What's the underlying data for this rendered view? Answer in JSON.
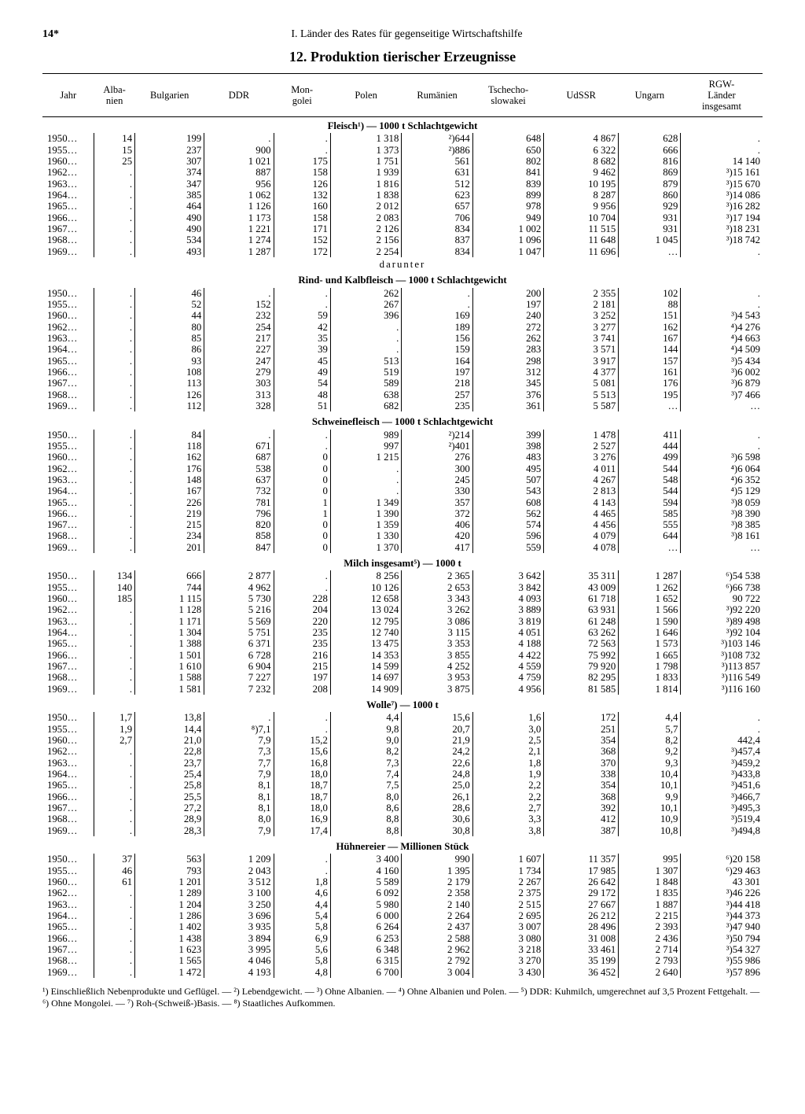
{
  "page_number": "14*",
  "running_head": "I. Länder des Rates für gegenseitige Wirtschaftshilfe",
  "title": "12. Produktion tierischer Erzeugnisse",
  "columns": [
    "Jahr",
    "Alba-\nnien",
    "Bulgarien",
    "DDR",
    "Mon-\ngolei",
    "Polen",
    "Rumänien",
    "Tschecho-\nslowakei",
    "UdSSR",
    "Ungarn",
    "RGW-\nLänder\ninsgesamt"
  ],
  "years": [
    "1950…",
    "1955…",
    "1960…",
    "1962…",
    "1963…",
    "1964…",
    "1965…",
    "1966…",
    "1967…",
    "1968…",
    "1969…"
  ],
  "darunter_label": "darunter",
  "sections": [
    {
      "title": "Fleisch¹) — 1000 t Schlachtgewicht",
      "rows": [
        [
          "14",
          "199",
          ".",
          ".",
          "1 318",
          "²)644",
          "648",
          "4 867",
          "628",
          "."
        ],
        [
          "15",
          "237",
          "900",
          ".",
          "1 373",
          "²)886",
          "650",
          "6 322",
          "666",
          "."
        ],
        [
          "25",
          "307",
          "1 021",
          "175",
          "1 751",
          "561",
          "802",
          "8 682",
          "816",
          "14 140"
        ],
        [
          ".",
          "374",
          "887",
          "158",
          "1 939",
          "631",
          "841",
          "9 462",
          "869",
          "³)15 161"
        ],
        [
          ".",
          "347",
          "956",
          "126",
          "1 816",
          "512",
          "839",
          "10 195",
          "879",
          "³)15 670"
        ],
        [
          ".",
          "385",
          "1 062",
          "132",
          "1 838",
          "623",
          "899",
          "8 287",
          "860",
          "³)14 086"
        ],
        [
          ".",
          "464",
          "1 126",
          "160",
          "2 012",
          "657",
          "978",
          "9 956",
          "929",
          "³)16 282"
        ],
        [
          ".",
          "490",
          "1 173",
          "158",
          "2 083",
          "706",
          "949",
          "10 704",
          "931",
          "³)17 194"
        ],
        [
          ".",
          "490",
          "1 221",
          "171",
          "2 126",
          "834",
          "1 002",
          "11 515",
          "931",
          "³)18 231"
        ],
        [
          ".",
          "534",
          "1 274",
          "152",
          "2 156",
          "837",
          "1 096",
          "11 648",
          "1 045",
          "³)18 742"
        ],
        [
          ".",
          "493",
          "1 287",
          "172",
          "2 254",
          "834",
          "1 047",
          "11 696",
          "…",
          "."
        ]
      ]
    },
    {
      "title": "Rind- und Kalbfleisch — 1000 t Schlachtgewicht",
      "rows": [
        [
          ".",
          "46",
          ".",
          ".",
          "262",
          ".",
          "200",
          "2 355",
          "102",
          "."
        ],
        [
          ".",
          "52",
          "152",
          ".",
          "267",
          ".",
          "197",
          "2 181",
          "88",
          "."
        ],
        [
          ".",
          "44",
          "232",
          "59",
          "396",
          "169",
          "240",
          "3 252",
          "151",
          "³)4 543"
        ],
        [
          ".",
          "80",
          "254",
          "42",
          ".",
          "189",
          "272",
          "3 277",
          "162",
          "⁴)4 276"
        ],
        [
          ".",
          "85",
          "217",
          "35",
          ".",
          "156",
          "262",
          "3 741",
          "167",
          "⁴)4 663"
        ],
        [
          ".",
          "86",
          "227",
          "39",
          ".",
          "159",
          "283",
          "3 571",
          "144",
          "⁴)4 509"
        ],
        [
          ".",
          "93",
          "247",
          "45",
          "513",
          "164",
          "298",
          "3 917",
          "157",
          "³)5 434"
        ],
        [
          ".",
          "108",
          "279",
          "49",
          "519",
          "197",
          "312",
          "4 377",
          "161",
          "³)6 002"
        ],
        [
          ".",
          "113",
          "303",
          "54",
          "589",
          "218",
          "345",
          "5 081",
          "176",
          "³)6 879"
        ],
        [
          ".",
          "126",
          "313",
          "48",
          "638",
          "257",
          "376",
          "5 513",
          "195",
          "³)7 466"
        ],
        [
          ".",
          "112",
          "328",
          "51",
          "682",
          "235",
          "361",
          "5 587",
          "…",
          "…"
        ]
      ]
    },
    {
      "title": "Schweinefleisch — 1000 t Schlachtgewicht",
      "rows": [
        [
          ".",
          "84",
          ".",
          ".",
          "989",
          "²)214",
          "399",
          "1 478",
          "411",
          "."
        ],
        [
          ".",
          "118",
          "671",
          ".",
          "997",
          "²)401",
          "398",
          "2 527",
          "444",
          "."
        ],
        [
          ".",
          "162",
          "687",
          "0",
          "1 215",
          "276",
          "483",
          "3 276",
          "499",
          "³)6 598"
        ],
        [
          ".",
          "176",
          "538",
          "0",
          ".",
          "300",
          "495",
          "4 011",
          "544",
          "⁴)6 064"
        ],
        [
          ".",
          "148",
          "637",
          "0",
          ".",
          "245",
          "507",
          "4 267",
          "548",
          "⁴)6 352"
        ],
        [
          ".",
          "167",
          "732",
          "0",
          ".",
          "330",
          "543",
          "2 813",
          "544",
          "⁴)5 129"
        ],
        [
          ".",
          "226",
          "781",
          "1",
          "1 349",
          "357",
          "608",
          "4 143",
          "594",
          "³)8 059"
        ],
        [
          ".",
          "219",
          "796",
          "1",
          "1 390",
          "372",
          "562",
          "4 465",
          "585",
          "³)8 390"
        ],
        [
          ".",
          "215",
          "820",
          "0",
          "1 359",
          "406",
          "574",
          "4 456",
          "555",
          "³)8 385"
        ],
        [
          ".",
          "234",
          "858",
          "0",
          "1 330",
          "420",
          "596",
          "4 079",
          "644",
          "³)8 161"
        ],
        [
          ".",
          "201",
          "847",
          "0",
          "1 370",
          "417",
          "559",
          "4 078",
          "…",
          "…"
        ]
      ]
    },
    {
      "title": "Milch insgesamt⁵) — 1000 t",
      "rows": [
        [
          "134",
          "666",
          "2 877",
          ".",
          "8 256",
          "2 365",
          "3 642",
          "35 311",
          "1 287",
          "⁶)54 538"
        ],
        [
          "140",
          "744",
          "4 962",
          ".",
          "10 126",
          "2 653",
          "3 842",
          "43 009",
          "1 262",
          "⁶)66 738"
        ],
        [
          "185",
          "1 115",
          "5 730",
          "228",
          "12 658",
          "3 343",
          "4 093",
          "61 718",
          "1 652",
          "90 722"
        ],
        [
          ".",
          "1 128",
          "5 216",
          "204",
          "13 024",
          "3 262",
          "3 889",
          "63 931",
          "1 566",
          "³)92 220"
        ],
        [
          ".",
          "1 171",
          "5 569",
          "220",
          "12 795",
          "3 086",
          "3 819",
          "61 248",
          "1 590",
          "³)89 498"
        ],
        [
          ".",
          "1 304",
          "5 751",
          "235",
          "12 740",
          "3 115",
          "4 051",
          "63 262",
          "1 646",
          "³)92 104"
        ],
        [
          ".",
          "1 388",
          "6 371",
          "235",
          "13 475",
          "3 353",
          "4 188",
          "72 563",
          "1 573",
          "³)103 146"
        ],
        [
          ".",
          "1 501",
          "6 728",
          "216",
          "14 353",
          "3 855",
          "4 422",
          "75 992",
          "1 665",
          "³)108 732"
        ],
        [
          ".",
          "1 610",
          "6 904",
          "215",
          "14 599",
          "4 252",
          "4 559",
          "79 920",
          "1 798",
          "³)113 857"
        ],
        [
          ".",
          "1 588",
          "7 227",
          "197",
          "14 697",
          "3 953",
          "4 759",
          "82 295",
          "1 833",
          "³)116 549"
        ],
        [
          ".",
          "1 581",
          "7 232",
          "208",
          "14 909",
          "3 875",
          "4 956",
          "81 585",
          "1 814",
          "³)116 160"
        ]
      ]
    },
    {
      "title": "Wolle⁷) — 1000 t",
      "rows": [
        [
          "1,7",
          "13,8",
          ".",
          ".",
          "4,4",
          "15,6",
          "1,6",
          "172",
          "4,4",
          "."
        ],
        [
          "1,9",
          "14,4",
          "⁸)7,1",
          ".",
          "9,8",
          "20,7",
          "3,0",
          "251",
          "5,7",
          "."
        ],
        [
          "2,7",
          "21,0",
          "7,9",
          "15,2",
          "9,0",
          "21,9",
          "2,5",
          "354",
          "8,2",
          "442,4"
        ],
        [
          ".",
          "22,8",
          "7,3",
          "15,6",
          "8,2",
          "24,2",
          "2,1",
          "368",
          "9,2",
          "³)457,4"
        ],
        [
          ".",
          "23,7",
          "7,7",
          "16,8",
          "7,3",
          "22,6",
          "1,8",
          "370",
          "9,3",
          "³)459,2"
        ],
        [
          ".",
          "25,4",
          "7,9",
          "18,0",
          "7,4",
          "24,8",
          "1,9",
          "338",
          "10,4",
          "³)433,8"
        ],
        [
          ".",
          "25,8",
          "8,1",
          "18,7",
          "7,5",
          "25,0",
          "2,2",
          "354",
          "10,1",
          "³)451,6"
        ],
        [
          ".",
          "25,5",
          "8,1",
          "18,7",
          "8,0",
          "26,1",
          "2,2",
          "368",
          "9,9",
          "³)466,7"
        ],
        [
          ".",
          "27,2",
          "8,1",
          "18,0",
          "8,6",
          "28,6",
          "2,7",
          "392",
          "10,1",
          "³)495,3"
        ],
        [
          ".",
          "28,9",
          "8,0",
          "16,9",
          "8,8",
          "30,6",
          "3,3",
          "412",
          "10,9",
          "³)519,4"
        ],
        [
          ".",
          "28,3",
          "7,9",
          "17,4",
          "8,8",
          "30,8",
          "3,8",
          "387",
          "10,8",
          "³)494,8"
        ]
      ]
    },
    {
      "title": "Hühnereier — Millionen Stück",
      "rows": [
        [
          "37",
          "563",
          "1 209",
          ".",
          "3 400",
          "990",
          "1 607",
          "11 357",
          "995",
          "⁶)20 158"
        ],
        [
          "46",
          "793",
          "2 043",
          ".",
          "4 160",
          "1 395",
          "1 734",
          "17 985",
          "1 307",
          "⁶)29 463"
        ],
        [
          "61",
          "1 201",
          "3 512",
          "1,8",
          "5 589",
          "2 179",
          "2 267",
          "26 642",
          "1 848",
          "43 301"
        ],
        [
          ".",
          "1 289",
          "3 100",
          "4,6",
          "6 092",
          "2 358",
          "2 375",
          "29 172",
          "1 835",
          "³)46 226"
        ],
        [
          ".",
          "1 204",
          "3 250",
          "4,4",
          "5 980",
          "2 140",
          "2 515",
          "27 667",
          "1 887",
          "³)44 418"
        ],
        [
          ".",
          "1 286",
          "3 696",
          "5,4",
          "6 000",
          "2 264",
          "2 695",
          "26 212",
          "2 215",
          "³)44 373"
        ],
        [
          ".",
          "1 402",
          "3 935",
          "5,8",
          "6 264",
          "2 437",
          "3 007",
          "28 496",
          "2 393",
          "³)47 940"
        ],
        [
          ".",
          "1 438",
          "3 894",
          "6,9",
          "6 253",
          "2 588",
          "3 080",
          "31 008",
          "2 436",
          "³)50 794"
        ],
        [
          ".",
          "1 623",
          "3 995",
          "5,6",
          "6 348",
          "2 962",
          "3 218",
          "33 461",
          "2 714",
          "³)54 327"
        ],
        [
          ".",
          "1 565",
          "4 046",
          "5,8",
          "6 315",
          "2 792",
          "3 270",
          "35 199",
          "2 793",
          "³)55 986"
        ],
        [
          ".",
          "1 472",
          "4 193",
          "4,8",
          "6 700",
          "3 004",
          "3 430",
          "36 452",
          "2 640",
          "³)57 896"
        ]
      ]
    }
  ],
  "footnotes": "¹) Einschließlich Nebenprodukte und Geflügel. — ²) Lebendgewicht. — ³) Ohne Albanien. — ⁴) Ohne Albanien und Polen. — ⁵) DDR: Kuhmilch, umgerechnet auf 3,5 Prozent Fettgehalt. — ⁶) Ohne Mongolei. — ⁷) Roh-(Schweiß-)Basis. — ⁸) Staatliches Aufkommen."
}
